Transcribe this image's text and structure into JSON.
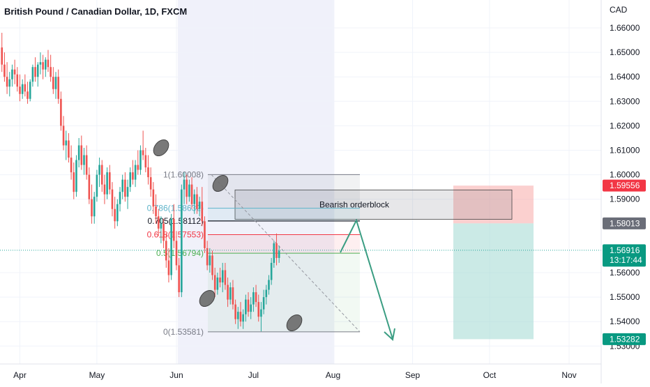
{
  "chart_data": {
    "type": "candlestick",
    "title": "British Pound / Canadian Dollar, 1D, FXCM",
    "currency": "CAD",
    "ylim": [
      1.527,
      1.668
    ],
    "y_ticks": [
      {
        "value": 1.66,
        "label": "1.66000"
      },
      {
        "value": 1.65,
        "label": "1.65000"
      },
      {
        "value": 1.64,
        "label": "1.64000"
      },
      {
        "value": 1.63,
        "label": "1.63000"
      },
      {
        "value": 1.62,
        "label": "1.62000"
      },
      {
        "value": 1.61,
        "label": "1.61000"
      },
      {
        "value": 1.6,
        "label": "1.60000"
      },
      {
        "value": 1.59,
        "label": "1.59000"
      },
      {
        "value": 1.56,
        "label": "1.56000"
      },
      {
        "value": 1.55,
        "label": "1.55000"
      },
      {
        "value": 1.54,
        "label": "1.54000"
      },
      {
        "value": 1.53,
        "label": "1.53000"
      }
    ],
    "x_labels": [
      {
        "label": "Apr",
        "day": 0
      },
      {
        "label": "May",
        "day": 30
      },
      {
        "label": "Jun",
        "day": 61
      },
      {
        "label": "Jul",
        "day": 91
      },
      {
        "label": "Aug",
        "day": 122
      },
      {
        "label": "Sep",
        "day": 153
      },
      {
        "label": "Oct",
        "day": 183
      },
      {
        "label": "Nov",
        "day": 214
      }
    ],
    "candles": [
      {
        "day": -7,
        "o": 1.652,
        "h": 1.658,
        "l": 1.642,
        "c": 1.645
      },
      {
        "day": -6,
        "o": 1.645,
        "h": 1.65,
        "l": 1.638,
        "c": 1.64
      },
      {
        "day": -5,
        "o": 1.64,
        "h": 1.646,
        "l": 1.633,
        "c": 1.636
      },
      {
        "day": -4,
        "o": 1.636,
        "h": 1.642,
        "l": 1.632,
        "c": 1.639
      },
      {
        "day": -3,
        "o": 1.639,
        "h": 1.645,
        "l": 1.636,
        "c": 1.643
      },
      {
        "day": -2,
        "o": 1.643,
        "h": 1.647,
        "l": 1.637,
        "c": 1.641
      },
      {
        "day": -1,
        "o": 1.641,
        "h": 1.644,
        "l": 1.634,
        "c": 1.636
      },
      {
        "day": 0,
        "o": 1.636,
        "h": 1.641,
        "l": 1.63,
        "c": 1.633
      },
      {
        "day": 1,
        "o": 1.633,
        "h": 1.639,
        "l": 1.631,
        "c": 1.637
      },
      {
        "day": 2,
        "o": 1.637,
        "h": 1.641,
        "l": 1.632,
        "c": 1.634
      },
      {
        "day": 3,
        "o": 1.634,
        "h": 1.638,
        "l": 1.629,
        "c": 1.631
      },
      {
        "day": 4,
        "o": 1.631,
        "h": 1.639,
        "l": 1.63,
        "c": 1.638
      },
      {
        "day": 5,
        "o": 1.638,
        "h": 1.645,
        "l": 1.636,
        "c": 1.644
      },
      {
        "day": 6,
        "o": 1.644,
        "h": 1.648,
        "l": 1.638,
        "c": 1.64
      },
      {
        "day": 7,
        "o": 1.64,
        "h": 1.646,
        "l": 1.636,
        "c": 1.645
      },
      {
        "day": 8,
        "o": 1.645,
        "h": 1.65,
        "l": 1.641,
        "c": 1.646
      },
      {
        "day": 9,
        "o": 1.646,
        "h": 1.649,
        "l": 1.639,
        "c": 1.643
      },
      {
        "day": 10,
        "o": 1.643,
        "h": 1.648,
        "l": 1.64,
        "c": 1.647
      },
      {
        "day": 11,
        "o": 1.647,
        "h": 1.651,
        "l": 1.642,
        "c": 1.644
      },
      {
        "day": 12,
        "o": 1.644,
        "h": 1.649,
        "l": 1.638,
        "c": 1.64
      },
      {
        "day": 13,
        "o": 1.64,
        "h": 1.644,
        "l": 1.633,
        "c": 1.635
      },
      {
        "day": 14,
        "o": 1.635,
        "h": 1.642,
        "l": 1.631,
        "c": 1.64
      },
      {
        "day": 15,
        "o": 1.64,
        "h": 1.643,
        "l": 1.629,
        "c": 1.631
      },
      {
        "day": 16,
        "o": 1.631,
        "h": 1.634,
        "l": 1.618,
        "c": 1.62
      },
      {
        "day": 17,
        "o": 1.62,
        "h": 1.624,
        "l": 1.61,
        "c": 1.612
      },
      {
        "day": 18,
        "o": 1.612,
        "h": 1.618,
        "l": 1.606,
        "c": 1.614
      },
      {
        "day": 19,
        "o": 1.614,
        "h": 1.617,
        "l": 1.605,
        "c": 1.607
      },
      {
        "day": 20,
        "o": 1.607,
        "h": 1.612,
        "l": 1.598,
        "c": 1.601
      },
      {
        "day": 21,
        "o": 1.601,
        "h": 1.605,
        "l": 1.59,
        "c": 1.593
      },
      {
        "day": 22,
        "o": 1.593,
        "h": 1.608,
        "l": 1.591,
        "c": 1.606
      },
      {
        "day": 23,
        "o": 1.606,
        "h": 1.615,
        "l": 1.603,
        "c": 1.612
      },
      {
        "day": 24,
        "o": 1.612,
        "h": 1.616,
        "l": 1.602,
        "c": 1.604
      },
      {
        "day": 25,
        "o": 1.604,
        "h": 1.611,
        "l": 1.6,
        "c": 1.608
      },
      {
        "day": 26,
        "o": 1.608,
        "h": 1.612,
        "l": 1.598,
        "c": 1.6
      },
      {
        "day": 27,
        "o": 1.6,
        "h": 1.603,
        "l": 1.588,
        "c": 1.59
      },
      {
        "day": 28,
        "o": 1.59,
        "h": 1.596,
        "l": 1.58,
        "c": 1.583
      },
      {
        "day": 29,
        "o": 1.583,
        "h": 1.593,
        "l": 1.58,
        "c": 1.591
      },
      {
        "day": 30,
        "o": 1.591,
        "h": 1.602,
        "l": 1.589,
        "c": 1.6
      },
      {
        "day": 31,
        "o": 1.6,
        "h": 1.607,
        "l": 1.595,
        "c": 1.604
      },
      {
        "day": 32,
        "o": 1.604,
        "h": 1.606,
        "l": 1.593,
        "c": 1.596
      },
      {
        "day": 33,
        "o": 1.596,
        "h": 1.6,
        "l": 1.588,
        "c": 1.592
      },
      {
        "day": 34,
        "o": 1.592,
        "h": 1.603,
        "l": 1.59,
        "c": 1.601
      },
      {
        "day": 35,
        "o": 1.601,
        "h": 1.604,
        "l": 1.592,
        "c": 1.594
      },
      {
        "day": 36,
        "o": 1.594,
        "h": 1.597,
        "l": 1.583,
        "c": 1.586
      },
      {
        "day": 37,
        "o": 1.586,
        "h": 1.591,
        "l": 1.578,
        "c": 1.581
      },
      {
        "day": 38,
        "o": 1.581,
        "h": 1.59,
        "l": 1.579,
        "c": 1.588
      },
      {
        "day": 39,
        "o": 1.588,
        "h": 1.595,
        "l": 1.585,
        "c": 1.593
      },
      {
        "day": 40,
        "o": 1.593,
        "h": 1.6,
        "l": 1.59,
        "c": 1.598
      },
      {
        "day": 41,
        "o": 1.598,
        "h": 1.601,
        "l": 1.589,
        "c": 1.591
      },
      {
        "day": 42,
        "o": 1.591,
        "h": 1.598,
        "l": 1.586,
        "c": 1.595
      },
      {
        "day": 43,
        "o": 1.595,
        "h": 1.603,
        "l": 1.593,
        "c": 1.601
      },
      {
        "day": 44,
        "o": 1.601,
        "h": 1.606,
        "l": 1.596,
        "c": 1.598
      },
      {
        "day": 45,
        "o": 1.598,
        "h": 1.606,
        "l": 1.595,
        "c": 1.604
      },
      {
        "day": 46,
        "o": 1.604,
        "h": 1.61,
        "l": 1.6,
        "c": 1.602
      },
      {
        "day": 47,
        "o": 1.602,
        "h": 1.612,
        "l": 1.6,
        "c": 1.61
      },
      {
        "day": 48,
        "o": 1.61,
        "h": 1.618,
        "l": 1.606,
        "c": 1.608
      },
      {
        "day": 49,
        "o": 1.608,
        "h": 1.611,
        "l": 1.601,
        "c": 1.603
      },
      {
        "day": 50,
        "o": 1.603,
        "h": 1.608,
        "l": 1.596,
        "c": 1.599
      },
      {
        "day": 51,
        "o": 1.599,
        "h": 1.603,
        "l": 1.591,
        "c": 1.594
      },
      {
        "day": 52,
        "o": 1.594,
        "h": 1.597,
        "l": 1.584,
        "c": 1.587
      },
      {
        "day": 53,
        "o": 1.587,
        "h": 1.592,
        "l": 1.58,
        "c": 1.583
      },
      {
        "day": 54,
        "o": 1.583,
        "h": 1.586,
        "l": 1.575,
        "c": 1.578
      },
      {
        "day": 55,
        "o": 1.578,
        "h": 1.583,
        "l": 1.572,
        "c": 1.58
      },
      {
        "day": 56,
        "o": 1.58,
        "h": 1.582,
        "l": 1.57,
        "c": 1.573
      },
      {
        "day": 57,
        "o": 1.573,
        "h": 1.576,
        "l": 1.562,
        "c": 1.565
      },
      {
        "day": 58,
        "o": 1.565,
        "h": 1.57,
        "l": 1.556,
        "c": 1.559
      },
      {
        "day": 59,
        "o": 1.559,
        "h": 1.584,
        "l": 1.557,
        "c": 1.582
      },
      {
        "day": 60,
        "o": 1.582,
        "h": 1.588,
        "l": 1.57,
        "c": 1.573
      },
      {
        "day": 61,
        "o": 1.573,
        "h": 1.577,
        "l": 1.561,
        "c": 1.563
      },
      {
        "day": 62,
        "o": 1.563,
        "h": 1.566,
        "l": 1.55,
        "c": 1.552
      },
      {
        "day": 63,
        "o": 1.552,
        "h": 1.596,
        "l": 1.55,
        "c": 1.594
      },
      {
        "day": 64,
        "o": 1.594,
        "h": 1.601,
        "l": 1.588,
        "c": 1.598
      },
      {
        "day": 65,
        "o": 1.598,
        "h": 1.6,
        "l": 1.588,
        "c": 1.591
      },
      {
        "day": 66,
        "o": 1.591,
        "h": 1.598,
        "l": 1.589,
        "c": 1.596
      },
      {
        "day": 67,
        "o": 1.596,
        "h": 1.599,
        "l": 1.586,
        "c": 1.588
      },
      {
        "day": 68,
        "o": 1.588,
        "h": 1.594,
        "l": 1.584,
        "c": 1.592
      },
      {
        "day": 69,
        "o": 1.592,
        "h": 1.595,
        "l": 1.584,
        "c": 1.586
      },
      {
        "day": 70,
        "o": 1.586,
        "h": 1.591,
        "l": 1.583,
        "c": 1.589
      },
      {
        "day": 71,
        "o": 1.589,
        "h": 1.595,
        "l": 1.579,
        "c": 1.581
      },
      {
        "day": 72,
        "o": 1.581,
        "h": 1.583,
        "l": 1.568,
        "c": 1.57
      },
      {
        "day": 73,
        "o": 1.57,
        "h": 1.573,
        "l": 1.561,
        "c": 1.563
      },
      {
        "day": 74,
        "o": 1.563,
        "h": 1.57,
        "l": 1.56,
        "c": 1.567
      },
      {
        "day": 75,
        "o": 1.567,
        "h": 1.569,
        "l": 1.557,
        "c": 1.559
      },
      {
        "day": 76,
        "o": 1.559,
        "h": 1.562,
        "l": 1.55,
        "c": 1.553
      },
      {
        "day": 77,
        "o": 1.553,
        "h": 1.56,
        "l": 1.551,
        "c": 1.558
      },
      {
        "day": 78,
        "o": 1.558,
        "h": 1.562,
        "l": 1.554,
        "c": 1.556
      },
      {
        "day": 79,
        "o": 1.556,
        "h": 1.564,
        "l": 1.552,
        "c": 1.561
      },
      {
        "day": 80,
        "o": 1.561,
        "h": 1.564,
        "l": 1.553,
        "c": 1.555
      },
      {
        "day": 81,
        "o": 1.555,
        "h": 1.558,
        "l": 1.546,
        "c": 1.549
      },
      {
        "day": 82,
        "o": 1.549,
        "h": 1.556,
        "l": 1.547,
        "c": 1.554
      },
      {
        "day": 83,
        "o": 1.554,
        "h": 1.557,
        "l": 1.545,
        "c": 1.547
      },
      {
        "day": 84,
        "o": 1.547,
        "h": 1.549,
        "l": 1.539,
        "c": 1.541
      },
      {
        "day": 85,
        "o": 1.541,
        "h": 1.546,
        "l": 1.537,
        "c": 1.544
      },
      {
        "day": 86,
        "o": 1.544,
        "h": 1.548,
        "l": 1.538,
        "c": 1.54
      },
      {
        "day": 87,
        "o": 1.54,
        "h": 1.545,
        "l": 1.537,
        "c": 1.543
      },
      {
        "day": 88,
        "o": 1.543,
        "h": 1.551,
        "l": 1.54,
        "c": 1.549
      },
      {
        "day": 89,
        "o": 1.549,
        "h": 1.552,
        "l": 1.542,
        "c": 1.544
      },
      {
        "day": 90,
        "o": 1.544,
        "h": 1.55,
        "l": 1.541,
        "c": 1.547
      },
      {
        "day": 91,
        "o": 1.547,
        "h": 1.554,
        "l": 1.544,
        "c": 1.552
      },
      {
        "day": 92,
        "o": 1.552,
        "h": 1.555,
        "l": 1.546,
        "c": 1.548
      },
      {
        "day": 93,
        "o": 1.548,
        "h": 1.551,
        "l": 1.54,
        "c": 1.542
      },
      {
        "day": 94,
        "o": 1.542,
        "h": 1.548,
        "l": 1.536,
        "c": 1.545
      },
      {
        "day": 95,
        "o": 1.545,
        "h": 1.553,
        "l": 1.543,
        "c": 1.55
      },
      {
        "day": 96,
        "o": 1.55,
        "h": 1.555,
        "l": 1.547,
        "c": 1.553
      },
      {
        "day": 97,
        "o": 1.553,
        "h": 1.559,
        "l": 1.551,
        "c": 1.557
      },
      {
        "day": 98,
        "o": 1.557,
        "h": 1.566,
        "l": 1.555,
        "c": 1.564
      },
      {
        "day": 99,
        "o": 1.564,
        "h": 1.573,
        "l": 1.562,
        "c": 1.572
      },
      {
        "day": 100,
        "o": 1.572,
        "h": 1.576,
        "l": 1.563,
        "c": 1.566
      },
      {
        "day": 101,
        "o": 1.566,
        "h": 1.571,
        "l": 1.564,
        "c": 1.569
      }
    ],
    "fibonacci": [
      {
        "ratio": "1",
        "label": "1(1.60008)",
        "price": 1.60008,
        "color": "#787b86"
      },
      {
        "ratio": "0.786",
        "label": "0.786(1.58632)",
        "price": 1.58632,
        "color": "#5db3c9"
      },
      {
        "ratio": "0.705",
        "label": "0.705(1.58112)",
        "price": 1.58112,
        "color": "#131722"
      },
      {
        "ratio": "0.618",
        "label": "0.618(1.57553)",
        "price": 1.57553,
        "color": "#f23645"
      },
      {
        "ratio": "0.5",
        "label": "0.5(1.56794)",
        "price": 1.56794,
        "color": "#4caf50"
      },
      {
        "ratio": "0",
        "label": "0(1.53581)",
        "price": 1.53581,
        "color": "#787b86"
      }
    ],
    "annotations": {
      "orderblock_label": "Bearish orderblock",
      "orderblock_top": 1.5938,
      "orderblock_bottom": 1.5818
    },
    "position": {
      "entry": 1.58013,
      "stop": 1.59556,
      "target": 1.53282
    },
    "price_labels": {
      "stop": "1.59556",
      "entry": "1.58013",
      "current": "1.56916",
      "countdown": "13:17:44",
      "target": "1.53282"
    },
    "current_price": 1.56916,
    "colors": {
      "up": "#26a69a",
      "down": "#ef5350",
      "stop_zone": "#f7a9a7",
      "target_zone": "#a8dcd6",
      "arrow": "#3a9d82"
    }
  }
}
